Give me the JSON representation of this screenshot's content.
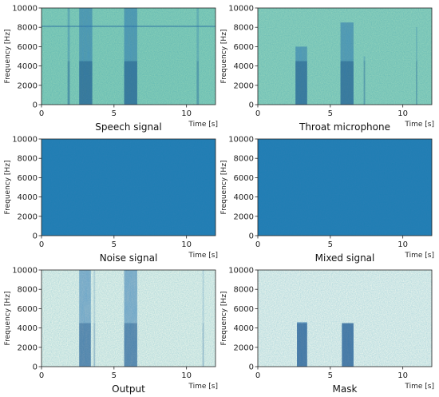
{
  "chart_data": [
    {
      "type": "heatmap",
      "caption": "Speech signal",
      "xlabel": "Time [s]",
      "ylabel": "Frequency [Hz]",
      "xlim": [
        0,
        12
      ],
      "ylim": [
        0,
        10000
      ],
      "xticks": [
        0,
        5,
        10
      ],
      "yticks": [
        0,
        2000,
        4000,
        6000,
        8000,
        10000
      ],
      "background": "#8ed3b8",
      "bands": [
        {
          "t0": 1.8,
          "t1": 1.95,
          "f_top": 10000,
          "intensity": 0.45
        },
        {
          "t0": 2.6,
          "t1": 3.5,
          "f_top": 10000,
          "intensity": 0.75
        },
        {
          "t0": 5.7,
          "t1": 6.6,
          "f_top": 10000,
          "intensity": 0.75
        },
        {
          "t0": 10.7,
          "t1": 10.85,
          "f_top": 10000,
          "intensity": 0.35
        }
      ],
      "hlines": [
        {
          "f": 8100,
          "intensity": 0.4
        }
      ]
    },
    {
      "type": "heatmap",
      "caption": "Throat microphone",
      "xlabel": "Time [s]",
      "ylabel": "Frequency [Hz]",
      "xlim": [
        0,
        12
      ],
      "ylim": [
        0,
        10000
      ],
      "xticks": [
        0,
        5,
        10
      ],
      "yticks": [
        0,
        2000,
        4000,
        6000,
        8000,
        10000
      ],
      "background": "#96d6bc",
      "bands": [
        {
          "t0": 2.6,
          "t1": 3.4,
          "f_top": 6000,
          "intensity": 0.75
        },
        {
          "t0": 5.7,
          "t1": 6.6,
          "f_top": 8500,
          "intensity": 0.75
        },
        {
          "t0": 7.3,
          "t1": 7.4,
          "f_top": 5000,
          "intensity": 0.35
        },
        {
          "t0": 10.9,
          "t1": 11.0,
          "f_top": 8000,
          "intensity": 0.3
        }
      ],
      "hlines": []
    },
    {
      "type": "heatmap",
      "caption": "Noise signal",
      "xlabel": "Time [s]",
      "ylabel": "Frequency [Hz]",
      "xlim": [
        0,
        12
      ],
      "ylim": [
        0,
        10000
      ],
      "xticks": [
        0,
        5,
        10
      ],
      "yticks": [
        0,
        2000,
        4000,
        6000,
        8000,
        10000
      ],
      "background": "#2a7fb6",
      "bands": [],
      "hlines": []
    },
    {
      "type": "heatmap",
      "caption": "Mixed signal",
      "xlabel": "Time [s]",
      "ylabel": "Frequency [Hz]",
      "xlim": [
        0,
        12
      ],
      "ylim": [
        0,
        10000
      ],
      "xticks": [
        0,
        5,
        10
      ],
      "yticks": [
        0,
        2000,
        4000,
        6000,
        8000,
        10000
      ],
      "background": "#2a7fb6",
      "bands": [],
      "hlines": []
    },
    {
      "type": "heatmap",
      "caption": "Output",
      "xlabel": "Time [s]",
      "ylabel": "Frequency [Hz]",
      "xlim": [
        0,
        12
      ],
      "ylim": [
        0,
        10000
      ],
      "xticks": [
        0,
        5,
        10
      ],
      "yticks": [
        0,
        2000,
        4000,
        6000,
        8000,
        10000
      ],
      "background": "#f4fbee",
      "bands": [
        {
          "t0": 2.6,
          "t1": 3.4,
          "f_top": 10000,
          "intensity": 0.7
        },
        {
          "t0": 3.6,
          "t1": 3.7,
          "f_top": 10000,
          "intensity": 0.25
        },
        {
          "t0": 5.7,
          "t1": 6.6,
          "f_top": 10000,
          "intensity": 0.7
        },
        {
          "t0": 11.1,
          "t1": 11.2,
          "f_top": 10000,
          "intensity": 0.25
        }
      ],
      "hlines": []
    },
    {
      "type": "heatmap",
      "caption": "Mask",
      "xlabel": "Time [s]",
      "ylabel": "Frequency [Hz]",
      "xlim": [
        0,
        12
      ],
      "ylim": [
        0,
        10000
      ],
      "xticks": [
        0,
        5,
        10
      ],
      "yticks": [
        0,
        2000,
        4000,
        6000,
        8000,
        10000
      ],
      "background": "#f6fbf1",
      "bands": [
        {
          "t0": 2.7,
          "t1": 3.4,
          "f_top": 4600,
          "intensity": 0.85
        },
        {
          "t0": 5.8,
          "t1": 6.6,
          "f_top": 4500,
          "intensity": 0.85
        }
      ],
      "hlines": []
    }
  ]
}
